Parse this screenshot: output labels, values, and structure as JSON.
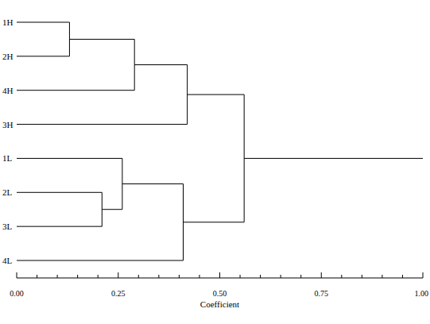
{
  "chart_data": {
    "type": "dendrogram",
    "leaves": [
      "1H",
      "2H",
      "4H",
      "3H",
      "1L",
      "2L",
      "3L",
      "4L"
    ],
    "merges": [
      {
        "children": [
          0,
          1
        ],
        "height": 0.13
      },
      {
        "children": [
          8,
          2
        ],
        "height": 0.29
      },
      {
        "children": [
          9,
          3
        ],
        "height": 0.42
      },
      {
        "children": [
          5,
          6
        ],
        "height": 0.21
      },
      {
        "children": [
          4,
          11
        ],
        "height": 0.26
      },
      {
        "children": [
          12,
          7
        ],
        "height": 0.41
      },
      {
        "children": [
          10,
          13
        ],
        "height": 0.56
      }
    ],
    "x_label": "Coefficient",
    "xlim": [
      0,
      1
    ],
    "xticks": [
      {
        "value": 0,
        "label": "0.00"
      },
      {
        "value": 0.25,
        "label": "0.25"
      },
      {
        "value": 0.5,
        "label": "0.50"
      },
      {
        "value": 0.75,
        "label": "0.75"
      },
      {
        "value": 1,
        "label": "1.00"
      }
    ],
    "minor_xticks": [
      0.05,
      0.1,
      0.15,
      0.2,
      0.3,
      0.35,
      0.4,
      0.45,
      0.55,
      0.6,
      0.65,
      0.7,
      0.8,
      0.85,
      0.9,
      0.95
    ],
    "color": "#000000"
  }
}
